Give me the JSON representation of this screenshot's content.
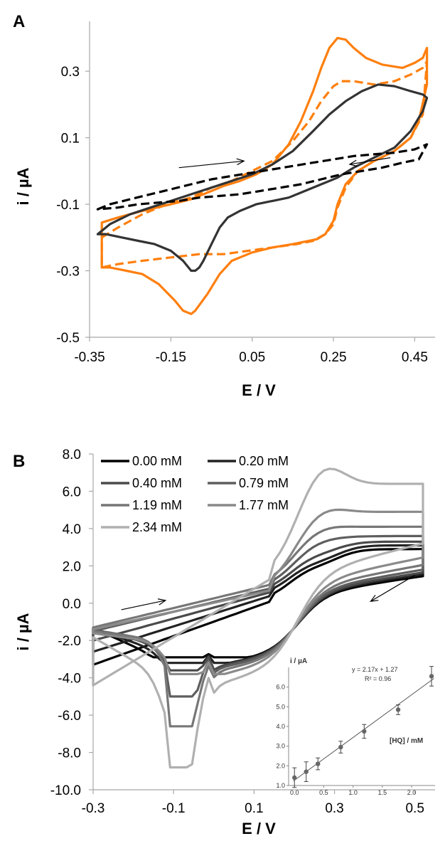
{
  "chart_data": [
    {
      "panel": "A",
      "type": "line",
      "xlabel": "E / V",
      "ylabel": "i / µA",
      "xlim": [
        -0.35,
        0.5
      ],
      "ylim": [
        -0.5,
        0.45
      ],
      "xticks": [
        "-0.35",
        "-0.15",
        "0.05",
        "0.25",
        "0.45"
      ],
      "yticks": [
        "-0.5",
        "-0.3",
        "-0.1",
        "0.1",
        "0.3"
      ],
      "grid": false,
      "arrows": [
        {
          "direction": "right",
          "from": [
            -0.13,
            0.01
          ],
          "to": [
            0.03,
            0.03
          ]
        },
        {
          "direction": "left",
          "from": [
            0.39,
            0.04
          ],
          "to": [
            0.29,
            0.02
          ]
        }
      ],
      "series": [
        {
          "color": "#ff7f0e",
          "style": "solid",
          "x": [
            -0.32,
            -0.28,
            -0.22,
            -0.15,
            -0.1,
            -0.07,
            -0.05,
            -0.02,
            0.02,
            0.06,
            0.1,
            0.14,
            0.17,
            0.2,
            0.22,
            0.24,
            0.26,
            0.28,
            0.3,
            0.33,
            0.37,
            0.42,
            0.45,
            0.47,
            0.48,
            0.48,
            0.46,
            0.44,
            0.4,
            0.35,
            0.31,
            0.28,
            0.26,
            0.25,
            0.23,
            0.21,
            0.19,
            0.15,
            0.1,
            0.05,
            0.0,
            -0.03,
            -0.06,
            -0.09,
            -0.1,
            -0.12,
            -0.14,
            -0.18,
            -0.22,
            -0.26,
            -0.3,
            -0.32
          ],
          "y": [
            -0.155,
            -0.14,
            -0.12,
            -0.1,
            -0.085,
            -0.07,
            -0.06,
            -0.045,
            -0.03,
            -0.01,
            0.02,
            0.08,
            0.15,
            0.24,
            0.31,
            0.37,
            0.4,
            0.395,
            0.37,
            0.34,
            0.32,
            0.31,
            0.325,
            0.34,
            0.37,
            0.26,
            0.15,
            0.1,
            0.06,
            0.03,
            0.0,
            -0.04,
            -0.1,
            -0.15,
            -0.19,
            -0.205,
            -0.21,
            -0.22,
            -0.23,
            -0.245,
            -0.27,
            -0.31,
            -0.37,
            -0.42,
            -0.43,
            -0.42,
            -0.39,
            -0.34,
            -0.31,
            -0.3,
            -0.29,
            -0.29
          ]
        },
        {
          "color": "#ff7f0e",
          "style": "dashed",
          "x": [
            -0.32,
            -0.28,
            -0.22,
            -0.16,
            -0.1,
            -0.05,
            0.0,
            0.05,
            0.1,
            0.15,
            0.19,
            0.22,
            0.25,
            0.27,
            0.3,
            0.35,
            0.4,
            0.44,
            0.47,
            0.48,
            0.47,
            0.44,
            0.4,
            0.35,
            0.31,
            0.28,
            0.26,
            0.25,
            0.23,
            0.2,
            0.16,
            0.1,
            0.04,
            -0.02,
            -0.08,
            -0.15,
            -0.22,
            -0.28,
            -0.32
          ],
          "y": [
            -0.2,
            -0.17,
            -0.13,
            -0.1,
            -0.08,
            -0.05,
            -0.03,
            0.0,
            0.03,
            0.09,
            0.15,
            0.21,
            0.255,
            0.27,
            0.27,
            0.26,
            0.27,
            0.29,
            0.31,
            0.33,
            0.17,
            0.1,
            0.06,
            0.03,
            0.0,
            -0.05,
            -0.11,
            -0.16,
            -0.19,
            -0.21,
            -0.22,
            -0.23,
            -0.24,
            -0.25,
            -0.25,
            -0.26,
            -0.27,
            -0.28,
            -0.29
          ]
        },
        {
          "color": "#333333",
          "style": "solid",
          "x": [
            -0.33,
            -0.3,
            -0.25,
            -0.2,
            -0.15,
            -0.1,
            -0.05,
            0.0,
            0.05,
            0.1,
            0.15,
            0.2,
            0.24,
            0.28,
            0.32,
            0.36,
            0.4,
            0.44,
            0.47,
            0.48,
            0.47,
            0.44,
            0.4,
            0.35,
            0.3,
            0.26,
            0.22,
            0.18,
            0.14,
            0.1,
            0.06,
            0.02,
            -0.01,
            -0.03,
            -0.05,
            -0.07,
            -0.08,
            -0.09,
            -0.1,
            -0.12,
            -0.15,
            -0.19,
            -0.23,
            -0.27,
            -0.31,
            -0.33
          ],
          "y": [
            -0.19,
            -0.16,
            -0.13,
            -0.11,
            -0.09,
            -0.07,
            -0.05,
            -0.03,
            -0.01,
            0.02,
            0.06,
            0.12,
            0.17,
            0.21,
            0.24,
            0.26,
            0.255,
            0.24,
            0.23,
            0.22,
            0.18,
            0.12,
            0.07,
            0.04,
            0.01,
            -0.02,
            -0.04,
            -0.06,
            -0.08,
            -0.09,
            -0.1,
            -0.12,
            -0.14,
            -0.17,
            -0.22,
            -0.27,
            -0.29,
            -0.3,
            -0.3,
            -0.27,
            -0.24,
            -0.22,
            -0.21,
            -0.2,
            -0.19,
            -0.19
          ]
        },
        {
          "color": "#000000",
          "style": "dashed",
          "x": [
            -0.33,
            -0.3,
            -0.25,
            -0.2,
            -0.15,
            -0.1,
            -0.05,
            0.0,
            0.05,
            0.1,
            0.15,
            0.2,
            0.25,
            0.3,
            0.35,
            0.4,
            0.45,
            0.48,
            0.46,
            0.42,
            0.37,
            0.32,
            0.27,
            0.22,
            0.17,
            0.12,
            0.07,
            0.02,
            -0.03,
            -0.08,
            -0.13,
            -0.18,
            -0.23,
            -0.28,
            -0.33
          ],
          "y": [
            -0.115,
            -0.1,
            -0.085,
            -0.07,
            -0.055,
            -0.04,
            -0.025,
            -0.015,
            -0.005,
            0.005,
            0.015,
            0.025,
            0.035,
            0.045,
            0.05,
            0.055,
            0.065,
            0.08,
            0.035,
            0.025,
            0.01,
            0.0,
            -0.01,
            -0.025,
            -0.04,
            -0.05,
            -0.06,
            -0.07,
            -0.075,
            -0.08,
            -0.09,
            -0.095,
            -0.1,
            -0.11,
            -0.115
          ]
        }
      ]
    },
    {
      "panel": "B",
      "type": "line",
      "xlabel": "E / V",
      "ylabel": "i / µA",
      "xlim": [
        -0.3,
        0.55
      ],
      "ylim": [
        -10.0,
        8.0
      ],
      "xticks": [
        "-0.3",
        "-0.1",
        "0.1",
        "0.3",
        "0.5"
      ],
      "yticks": [
        "8.0",
        "6.0",
        "4.0",
        "2.0",
        "0.0",
        "-2.0",
        "-4.0",
        "-6.0",
        "-8.0",
        "-10.0"
      ],
      "grid": false,
      "arrows": [
        {
          "direction": "right",
          "from": [
            -0.23,
            -0.35
          ],
          "to": [
            -0.12,
            0.15
          ]
        },
        {
          "direction": "left",
          "from": [
            0.5,
            1.5
          ],
          "to": [
            0.39,
            0.1
          ]
        }
      ],
      "legend": {
        "placement": "top-left",
        "columns": 2
      },
      "series": [
        {
          "name": "0.00 mM",
          "color": "#000000",
          "Ipa": 2.3,
          "Ipc": -2.9,
          "Iend": 2.9,
          "Istart": -3.3,
          "Ib": 0.0
        },
        {
          "name": "0.20 mM",
          "color": "#222222",
          "Ipa": 2.5,
          "Ipc": -3.2,
          "Iend": 3.1,
          "Istart": -2.6,
          "Ib": 0.3
        },
        {
          "name": "0.40 mM",
          "color": "#4a4a4a",
          "Ipa": 2.9,
          "Ipc": -3.6,
          "Iend": 3.3,
          "Istart": -2.0,
          "Ib": 0.5
        },
        {
          "name": "0.79 mM",
          "color": "#5e5e5e",
          "Ipa": 3.6,
          "Ipc": -5.0,
          "Iend": 3.6,
          "Istart": -1.5,
          "Ib": 0.7
        },
        {
          "name": "1.19 mM",
          "color": "#777777",
          "Ipa": 4.3,
          "Ipc": -6.6,
          "Iend": 4.1,
          "Istart": -1.3,
          "Ib": 0.9
        },
        {
          "name": "1.77 mM",
          "color": "#8a8a8a",
          "Ipa": 5.4,
          "Ipc": -3.8,
          "Iend": 4.9,
          "Istart": -1.4,
          "Ib": 0.6
        },
        {
          "name": "2.34 mM",
          "color": "#b0b0b0",
          "Ipa": 8.0,
          "Ipc": -8.8,
          "Iend": 6.4,
          "Istart": -4.4,
          "Ib": 1.2
        }
      ],
      "inset": {
        "type": "scatter",
        "ylabel": "i / µA",
        "xlabel": "[HQ] / mM",
        "equation": "y = 2.17x + 1.27",
        "r2": "R² = 0.96",
        "xlim": [
          -0.1,
          2.4
        ],
        "ylim": [
          1.0,
          7.0
        ],
        "xticks": [
          "0.0",
          "0.5",
          "1.0",
          "1.5",
          "2.0"
        ],
        "yticks": [
          "1.0",
          "2.0",
          "3.0",
          "4.0",
          "5.0",
          "6.0"
        ],
        "x": [
          0.0,
          0.2,
          0.4,
          0.79,
          1.19,
          1.77,
          2.34
        ],
        "y": [
          1.4,
          1.7,
          2.1,
          2.95,
          3.75,
          4.85,
          6.55
        ],
        "err": [
          0.5,
          0.5,
          0.3,
          0.3,
          0.35,
          0.25,
          0.5
        ],
        "fit": {
          "slope": 2.17,
          "intercept": 1.27
        }
      }
    }
  ]
}
